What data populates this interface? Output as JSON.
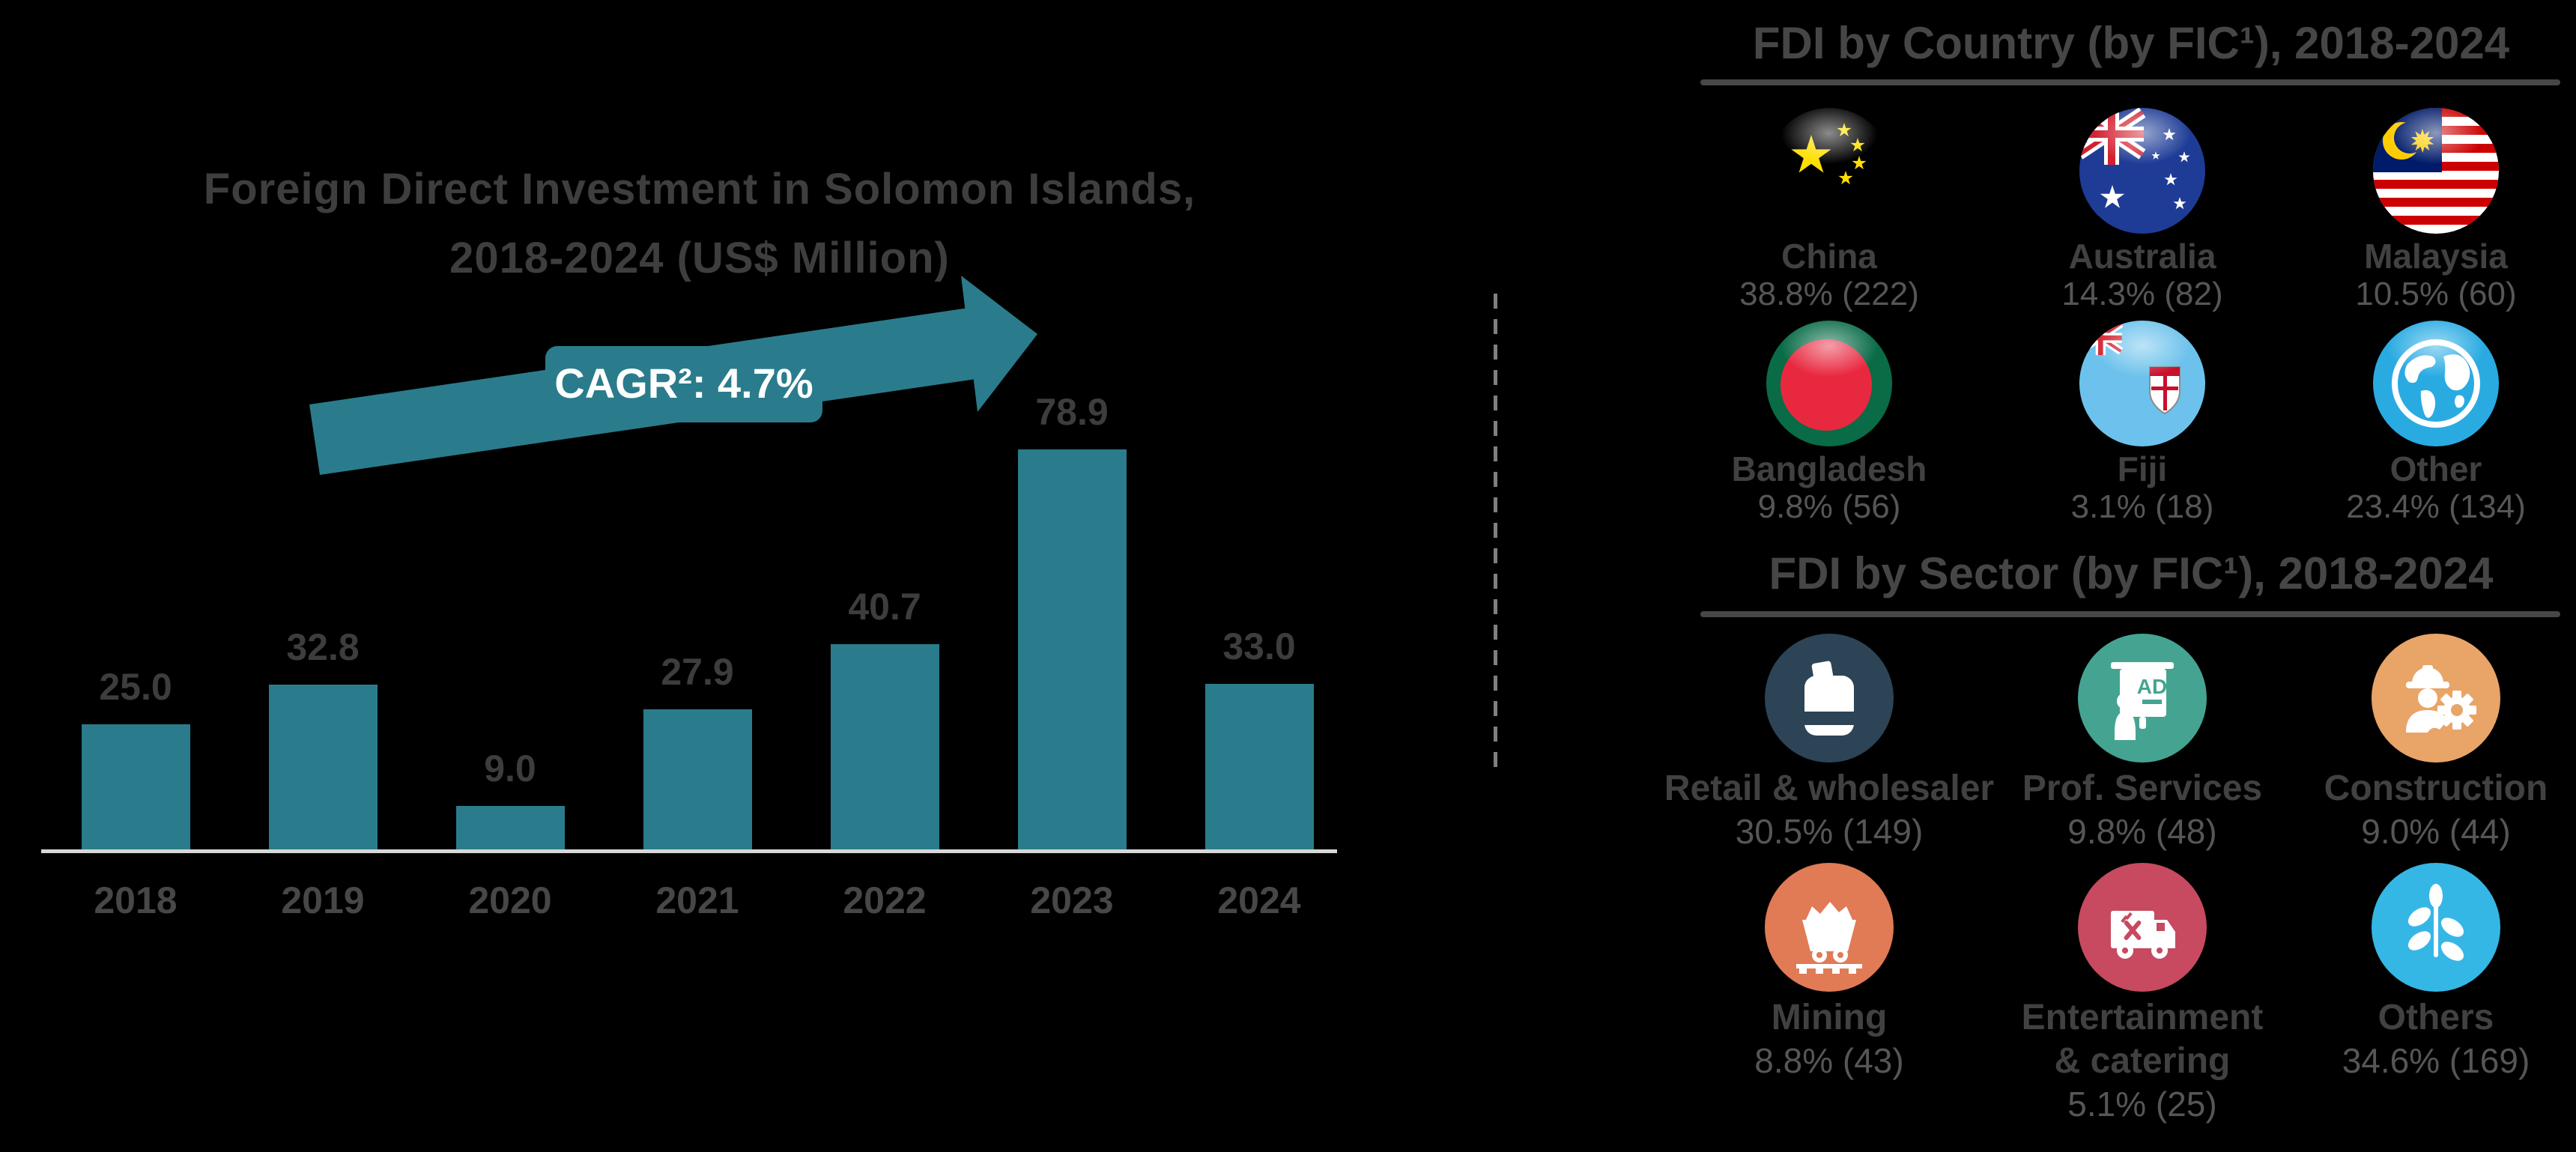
{
  "colors": {
    "background": "#000000",
    "teal_accent": "#2A7C8C",
    "title_gray": "#3E3E3E",
    "header_gray": "#464646",
    "value_gray": "#3D3D3D",
    "pct_gray": "#565656",
    "axis_gray": "#D8D8D8",
    "divider_gray": "#7F7F7F",
    "retail_circle": "#2C4456",
    "prof_circle": "#45A491",
    "construction_circle": "#E9A468",
    "mining_circle": "#E07B56",
    "entertainment_circle": "#C74A60",
    "others_circle": "#35B7E6",
    "globe_blue": "#29ABE2"
  },
  "left_chart": {
    "title_line1": "Foreign Direct Investment in Solomon Islands,",
    "title_line2": "2018-2024 (US$ Million)",
    "cagr_label": "CAGR²: 4.7%"
  },
  "chart_data": [
    {
      "type": "bar",
      "title": "Foreign Direct Investment in Solomon Islands, 2018-2024 (US$ Million)",
      "categories": [
        "2018",
        "2019",
        "2020",
        "2021",
        "2022",
        "2023",
        "2024"
      ],
      "values": [
        25.0,
        32.8,
        9.0,
        27.9,
        40.7,
        78.9,
        33.0
      ],
      "value_labels": [
        "25.0",
        "32.8",
        "9.0",
        "27.9",
        "40.7",
        "78.9",
        "33.0"
      ],
      "annotation": "CAGR²: 4.7%",
      "xlabel": "",
      "ylabel": "US$ Million",
      "ylim": [
        0,
        85
      ],
      "grid": false,
      "legend": "none",
      "bar_color": "#2A7C8C"
    },
    {
      "type": "pie",
      "title": "FDI by Country (by FIC¹), 2018-2024",
      "labels": [
        "China",
        "Australia",
        "Malaysia",
        "Bangladesh",
        "Fiji",
        "Other"
      ],
      "values_pct": [
        38.8,
        14.3,
        10.5,
        9.8,
        3.1,
        23.4
      ],
      "values_abs": [
        222,
        82,
        60,
        56,
        18,
        134
      ]
    },
    {
      "type": "pie",
      "title": "FDI by Sector (by FIC¹), 2018-2024",
      "labels": [
        "Retail & wholesaler",
        "Prof. Services",
        "Construction",
        "Mining",
        "Entertainment & catering",
        "Others"
      ],
      "values_pct": [
        30.5,
        9.8,
        9.0,
        8.8,
        5.1,
        34.6
      ],
      "values_abs": [
        149,
        48,
        44,
        43,
        25,
        169
      ]
    }
  ],
  "country_section": {
    "title": "FDI by Country (by FIC¹), 2018-2024",
    "items": [
      {
        "name": "China",
        "pct": "38.8% (222)",
        "flag": "china"
      },
      {
        "name": "Australia",
        "pct": "14.3% (82)",
        "flag": "australia"
      },
      {
        "name": "Malaysia",
        "pct": "10.5% (60)",
        "flag": "malaysia"
      },
      {
        "name": "Bangladesh",
        "pct": "9.8% (56)",
        "flag": "bangladesh"
      },
      {
        "name": "Fiji",
        "pct": "3.1% (18)",
        "flag": "fiji"
      },
      {
        "name": "Other",
        "pct": "23.4% (134)",
        "flag": "globe"
      }
    ]
  },
  "sector_section": {
    "title": "FDI by Sector (by FIC¹), 2018-2024",
    "items": [
      {
        "name": "Retail & wholesaler",
        "pct": "30.5% (149)",
        "icon": "retail-bag",
        "color": "#2C4456"
      },
      {
        "name": "Prof. Services",
        "pct": "9.8% (48)",
        "icon": "presentation-board",
        "color": "#45A491"
      },
      {
        "name": "Construction",
        "pct": "9.0% (44)",
        "icon": "construction-worker",
        "color": "#E9A468"
      },
      {
        "name": "Mining",
        "pct": "8.8% (43)",
        "icon": "mine-cart",
        "color": "#E07B56"
      },
      {
        "name": "Entertainment\n& catering",
        "pct": "5.1% (25)",
        "icon": "food-truck",
        "color": "#C74A60"
      },
      {
        "name": "Others",
        "pct": "34.6% (169)",
        "icon": "plant",
        "color": "#35B7E6"
      }
    ]
  }
}
